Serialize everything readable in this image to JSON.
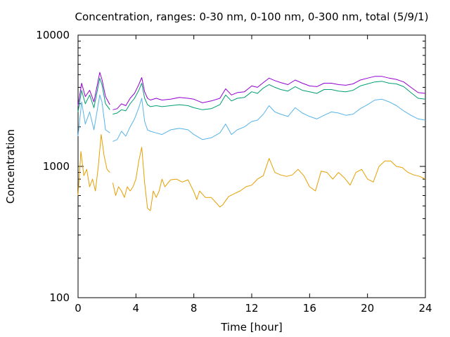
{
  "chart_data": {
    "type": "line",
    "title": "Concentration, ranges: 0-30 nm, 0-100 nm, 0-300 nm, total (5/9/1)",
    "xlabel": "Time [hour]",
    "ylabel": "Concentration",
    "xlim": [
      0,
      24
    ],
    "ylim": [
      100,
      10000
    ],
    "yscale": "log",
    "x_ticks": [
      0,
      4,
      8,
      12,
      16,
      20,
      24
    ],
    "y_ticks": [
      100,
      1000,
      10000
    ],
    "x_tick_labels": [
      "0",
      "4",
      "8",
      "12",
      "16",
      "20",
      "24"
    ],
    "y_tick_labels": [
      "100",
      "1000",
      "10000"
    ],
    "grid": false,
    "legend": "none",
    "series": [
      {
        "color": "#9400d3",
        "gaps_after_x": [
          2.2
        ],
        "x": [
          0,
          0.25,
          0.5,
          0.8,
          1.1,
          1.5,
          1.65,
          1.9,
          2.2,
          2.4,
          2.7,
          3.0,
          3.3,
          3.6,
          3.9,
          4.2,
          4.4,
          4.6,
          4.8,
          5.0,
          5.4,
          5.8,
          6.4,
          7.0,
          7.6,
          8.0,
          8.6,
          9.2,
          9.8,
          10.2,
          10.6,
          11.0,
          11.5,
          12.0,
          12.4,
          12.8,
          13.2,
          13.6,
          14.0,
          14.5,
          15.0,
          15.5,
          16.0,
          16.5,
          17.0,
          17.5,
          18.0,
          18.5,
          19.0,
          19.5,
          20.0,
          20.5,
          21.0,
          21.5,
          22.0,
          22.5,
          23.0,
          23.5,
          24.0
        ],
        "y": [
          2900,
          4300,
          3400,
          3800,
          3100,
          5200,
          4600,
          3400,
          2950,
          2700,
          2750,
          3000,
          2900,
          3300,
          3600,
          4200,
          4750,
          3700,
          3300,
          3200,
          3300,
          3200,
          3250,
          3350,
          3300,
          3250,
          3050,
          3150,
          3300,
          3900,
          3500,
          3650,
          3700,
          4100,
          4000,
          4350,
          4700,
          4500,
          4350,
          4200,
          4550,
          4300,
          4100,
          4050,
          4300,
          4300,
          4200,
          4150,
          4250,
          4550,
          4700,
          4850,
          4850,
          4700,
          4600,
          4400,
          4000,
          3650,
          3600
        ]
      },
      {
        "color": "#009e73",
        "gaps_after_x": [
          2.2
        ],
        "x": [
          0,
          0.25,
          0.5,
          0.8,
          1.1,
          1.5,
          1.65,
          1.9,
          2.2,
          2.4,
          2.7,
          3.0,
          3.3,
          3.6,
          3.9,
          4.2,
          4.4,
          4.6,
          4.8,
          5.0,
          5.4,
          5.8,
          6.4,
          7.0,
          7.6,
          8.0,
          8.6,
          9.2,
          9.8,
          10.2,
          10.6,
          11.0,
          11.5,
          12.0,
          12.4,
          12.8,
          13.2,
          13.6,
          14.0,
          14.5,
          15.0,
          15.5,
          16.0,
          16.5,
          17.0,
          17.5,
          18.0,
          18.5,
          19.0,
          19.5,
          20.0,
          20.5,
          21.0,
          21.5,
          22.0,
          22.5,
          23.0,
          23.5,
          24.0
        ],
        "y": [
          2600,
          3800,
          3000,
          3500,
          2800,
          4700,
          4200,
          3000,
          2700,
          2500,
          2550,
          2700,
          2650,
          3000,
          3300,
          3800,
          4300,
          3300,
          2950,
          2850,
          2900,
          2850,
          2900,
          2950,
          2900,
          2800,
          2700,
          2750,
          2950,
          3500,
          3150,
          3300,
          3350,
          3700,
          3600,
          3950,
          4200,
          4000,
          3850,
          3750,
          4050,
          3800,
          3700,
          3600,
          3850,
          3850,
          3750,
          3700,
          3800,
          4100,
          4250,
          4400,
          4450,
          4300,
          4250,
          4050,
          3650,
          3300,
          3250
        ]
      },
      {
        "color": "#56b4e9",
        "gaps_after_x": [
          2.2
        ],
        "x": [
          0,
          0.25,
          0.5,
          0.8,
          1.1,
          1.5,
          1.65,
          1.9,
          2.2,
          2.4,
          2.7,
          3.0,
          3.3,
          3.6,
          3.9,
          4.2,
          4.4,
          4.6,
          4.8,
          5.0,
          5.4,
          5.8,
          6.4,
          7.0,
          7.6,
          8.0,
          8.6,
          9.2,
          9.8,
          10.2,
          10.6,
          11.0,
          11.5,
          12.0,
          12.4,
          12.8,
          13.2,
          13.6,
          14.0,
          14.5,
          15.0,
          15.5,
          16.0,
          16.5,
          17.0,
          17.5,
          18.0,
          18.5,
          19.0,
          19.5,
          20.0,
          20.5,
          21.0,
          21.5,
          22.0,
          22.5,
          23.0,
          23.5,
          24.0
        ],
        "y": [
          1700,
          3100,
          2100,
          2600,
          1900,
          3500,
          3100,
          1900,
          1800,
          1550,
          1600,
          1850,
          1700,
          2000,
          2300,
          2800,
          3300,
          2200,
          1900,
          1850,
          1800,
          1750,
          1900,
          1950,
          1900,
          1750,
          1600,
          1650,
          1800,
          2100,
          1750,
          1900,
          2000,
          2200,
          2250,
          2500,
          2900,
          2600,
          2500,
          2400,
          2800,
          2550,
          2400,
          2300,
          2450,
          2600,
          2550,
          2450,
          2500,
          2750,
          2950,
          3200,
          3250,
          3100,
          2900,
          2650,
          2450,
          2300,
          2250
        ]
      },
      {
        "color": "#e69f00",
        "gaps_after_x": [
          2.2
        ],
        "x": [
          0,
          0.2,
          0.4,
          0.6,
          0.8,
          1.0,
          1.2,
          1.4,
          1.6,
          1.8,
          2.0,
          2.2,
          2.4,
          2.6,
          2.8,
          3.0,
          3.2,
          3.4,
          3.6,
          3.8,
          4.0,
          4.2,
          4.4,
          4.6,
          4.8,
          5.0,
          5.2,
          5.4,
          5.6,
          5.8,
          6.0,
          6.4,
          6.8,
          7.2,
          7.6,
          8.0,
          8.2,
          8.4,
          8.8,
          9.2,
          9.6,
          9.8,
          10.0,
          10.4,
          10.8,
          11.2,
          11.6,
          12.0,
          12.4,
          12.8,
          13.2,
          13.6,
          14.0,
          14.4,
          14.8,
          15.2,
          15.6,
          16.0,
          16.4,
          16.8,
          17.2,
          17.6,
          18.0,
          18.4,
          18.8,
          19.2,
          19.6,
          20.0,
          20.4,
          20.8,
          21.2,
          21.6,
          22.0,
          22.4,
          22.8,
          23.2,
          23.6,
          24.0
        ],
        "y": [
          600,
          1300,
          850,
          950,
          700,
          800,
          650,
          1000,
          1750,
          1200,
          950,
          900,
          750,
          600,
          700,
          650,
          580,
          700,
          650,
          700,
          800,
          1100,
          1400,
          750,
          480,
          460,
          650,
          580,
          650,
          800,
          700,
          790,
          800,
          760,
          790,
          640,
          560,
          650,
          580,
          580,
          520,
          490,
          510,
          590,
          620,
          650,
          700,
          720,
          800,
          850,
          1150,
          900,
          860,
          840,
          860,
          950,
          850,
          700,
          650,
          920,
          900,
          800,
          900,
          820,
          720,
          900,
          950,
          800,
          760,
          1000,
          1100,
          1100,
          1000,
          980,
          900,
          860,
          840,
          800
        ]
      }
    ]
  }
}
